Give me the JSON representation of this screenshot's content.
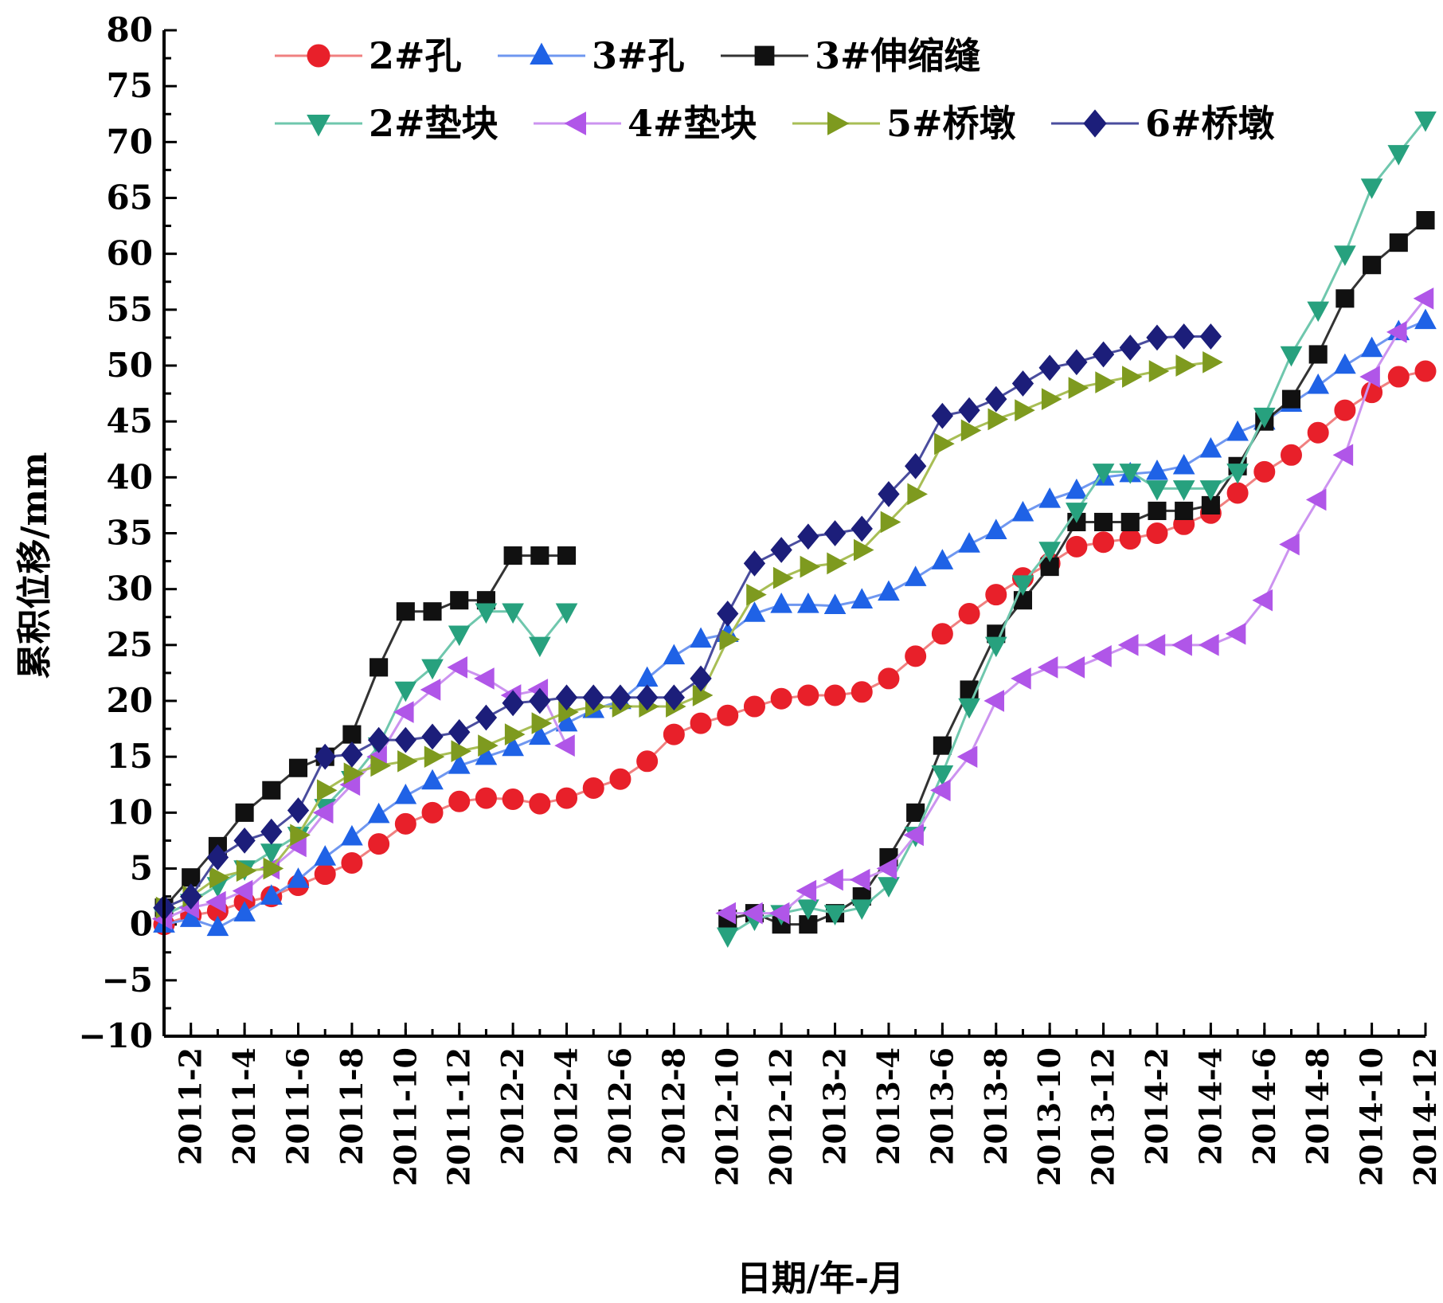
{
  "chart_data": {
    "type": "line",
    "xlabel": "日期/年-月",
    "ylabel": "累积位移/mm",
    "ylim": [
      -10,
      80
    ],
    "y_ticks": [
      -10,
      -5,
      0,
      5,
      10,
      15,
      20,
      25,
      30,
      35,
      40,
      45,
      50,
      55,
      60,
      65,
      70,
      75,
      80
    ],
    "xlim": [
      0,
      47
    ],
    "x_ticks": [
      {
        "x": 1,
        "label": "2011-2"
      },
      {
        "x": 3,
        "label": "2011-4"
      },
      {
        "x": 5,
        "label": "2011-6"
      },
      {
        "x": 7,
        "label": "2011-8"
      },
      {
        "x": 9,
        "label": "2011-10"
      },
      {
        "x": 11,
        "label": "2011-12"
      },
      {
        "x": 13,
        "label": "2012-2"
      },
      {
        "x": 15,
        "label": "2012-4"
      },
      {
        "x": 17,
        "label": "2012-6"
      },
      {
        "x": 19,
        "label": "2012-8"
      },
      {
        "x": 21,
        "label": "2012-10"
      },
      {
        "x": 23,
        "label": "2012-12"
      },
      {
        "x": 25,
        "label": "2013-2"
      },
      {
        "x": 27,
        "label": "2013-4"
      },
      {
        "x": 29,
        "label": "2013-6"
      },
      {
        "x": 31,
        "label": "2013-8"
      },
      {
        "x": 33,
        "label": "2013-10"
      },
      {
        "x": 35,
        "label": "2013-12"
      },
      {
        "x": 37,
        "label": "2014-2"
      },
      {
        "x": 39,
        "label": "2014-4"
      },
      {
        "x": 41,
        "label": "2014-6"
      },
      {
        "x": 43,
        "label": "2014-8"
      },
      {
        "x": 45,
        "label": "2014-10"
      },
      {
        "x": 47,
        "label": "2014-12"
      }
    ],
    "legend_position": "top",
    "series": [
      {
        "name": "2#孔",
        "color": "#e8202a",
        "line_color": "#f08080",
        "marker": "circle",
        "x": [
          0,
          1,
          2,
          3,
          4,
          5,
          6,
          7,
          8,
          9,
          10,
          11,
          12,
          13,
          14,
          15,
          16,
          17,
          18,
          19,
          20,
          21,
          22,
          23,
          24,
          25,
          26,
          27,
          28,
          29,
          30,
          31,
          32,
          33,
          34,
          35,
          36,
          37,
          38,
          39,
          40,
          41,
          42,
          43,
          44,
          45,
          46,
          47
        ],
        "y": [
          0,
          0.8,
          1.2,
          2,
          2.5,
          3.5,
          4.5,
          5.5,
          7.2,
          9,
          10,
          11,
          11.3,
          11.2,
          10.8,
          11.3,
          12.2,
          13,
          14.6,
          17,
          18,
          18.7,
          19.5,
          20.2,
          20.5,
          20.5,
          20.8,
          22,
          24,
          26,
          27.8,
          29.5,
          31,
          32.3,
          33.8,
          34.2,
          34.5,
          35,
          35.8,
          36.8,
          38.6,
          40.5,
          42,
          44,
          46,
          47.6,
          49,
          49.5
        ]
      },
      {
        "name": "3#孔",
        "color": "#1f62e6",
        "line_color": "#6f97f0",
        "marker": "triangle-up",
        "x": [
          0,
          1,
          2,
          3,
          4,
          5,
          6,
          7,
          8,
          9,
          10,
          11,
          12,
          13,
          14,
          15,
          16,
          17,
          18,
          19,
          20,
          21,
          22,
          23,
          24,
          25,
          26,
          27,
          28,
          29,
          30,
          31,
          32,
          33,
          34,
          35,
          36,
          37,
          38,
          39,
          40,
          41,
          42,
          43,
          44,
          45,
          46,
          47
        ],
        "y": [
          0,
          0.5,
          -0.3,
          1,
          2.5,
          4,
          6,
          7.8,
          9.8,
          11.5,
          12.8,
          14.2,
          15,
          15.8,
          16.8,
          18,
          19.2,
          20,
          22,
          24,
          25.5,
          26,
          27.8,
          28.6,
          28.6,
          28.5,
          29,
          29.7,
          31,
          32.5,
          34,
          35.2,
          36.8,
          38,
          38.8,
          40,
          40.3,
          40.5,
          41,
          42.5,
          44,
          45,
          46.6,
          48.2,
          50,
          51.5,
          53,
          54
        ]
      },
      {
        "name": "3#伸缩缝",
        "color": "#111111",
        "line_color": "#333333",
        "marker": "square",
        "segments": [
          {
            "x": [
              0,
              1,
              2,
              3,
              4,
              5,
              6,
              7,
              8,
              9,
              10,
              11,
              12,
              13,
              14,
              15
            ],
            "y": [
              1.5,
              4.2,
              7,
              10,
              12,
              14,
              15,
              17,
              23,
              28,
              28,
              29,
              29,
              33,
              33,
              33
            ]
          },
          {
            "x": [
              21,
              22,
              23,
              24,
              25,
              26,
              27,
              28,
              29,
              30,
              31,
              32,
              33,
              34,
              35,
              36,
              37,
              38,
              39,
              40,
              41,
              42,
              43,
              44,
              45,
              46,
              47
            ],
            "y": [
              0.5,
              1,
              0,
              0,
              1,
              2.5,
              6,
              10,
              16,
              21,
              26,
              29,
              32,
              36,
              36,
              36,
              37,
              37,
              37.5,
              41,
              45,
              47,
              51,
              56,
              59,
              61,
              63
            ]
          }
        ]
      },
      {
        "name": "2#垫块",
        "color": "#27a17e",
        "line_color": "#6fc7ad",
        "marker": "triangle-down",
        "segments": [
          {
            "x": [
              0,
              1,
              2,
              3,
              4,
              5,
              6,
              7,
              8,
              9,
              10,
              11,
              12,
              13,
              14,
              15
            ],
            "y": [
              0.8,
              2,
              3.5,
              5,
              6.5,
              8,
              10.5,
              13,
              16,
              21,
              23,
              26,
              28,
              28,
              25,
              28
            ]
          },
          {
            "x": [
              21,
              22,
              23,
              24,
              25,
              26,
              27,
              28,
              29,
              30,
              31,
              32,
              33,
              34,
              35,
              36,
              37,
              38,
              39,
              40,
              41,
              42,
              43,
              44,
              45,
              46,
              47
            ],
            "y": [
              -1,
              0.5,
              1,
              1.5,
              1,
              1.5,
              3.5,
              8,
              13.5,
              19.5,
              25,
              30.5,
              33.5,
              37,
              40.5,
              40.5,
              39,
              39,
              39,
              40.5,
              45.5,
              51,
              55,
              60,
              66,
              69,
              72
            ]
          }
        ]
      },
      {
        "name": "4#垫块",
        "color": "#b056e8",
        "line_color": "#cc93f0",
        "marker": "triangle-left",
        "segments": [
          {
            "x": [
              0,
              1,
              2,
              3,
              4,
              5,
              6,
              7,
              8,
              9,
              10,
              11,
              12,
              13,
              14,
              15
            ],
            "y": [
              0.5,
              1.5,
              2,
              3,
              5,
              7,
              10,
              12.5,
              15,
              19,
              21,
              23,
              22,
              20.5,
              21,
              16
            ]
          },
          {
            "x": [
              21,
              22,
              23,
              24,
              25,
              26,
              27,
              28,
              29,
              30,
              31,
              32,
              33,
              34,
              35,
              36,
              37,
              38,
              39,
              40,
              41,
              42,
              43,
              44,
              45,
              46,
              47
            ],
            "y": [
              1,
              1,
              1,
              3,
              4,
              4,
              5,
              8,
              12,
              15,
              20,
              22,
              23,
              23,
              24,
              25,
              25,
              25,
              25,
              26,
              29,
              34,
              38,
              42,
              49,
              53,
              56
            ]
          }
        ]
      },
      {
        "name": "5#桥墩",
        "color": "#7e9a1f",
        "line_color": "#a8be55",
        "marker": "triangle-right",
        "segments": [
          {
            "x": [
              0,
              1,
              2,
              3,
              4,
              5,
              6,
              7,
              8,
              9,
              10,
              11,
              12,
              13,
              14,
              15,
              16,
              17,
              18,
              19,
              20,
              21,
              22,
              23,
              24,
              25,
              26,
              27,
              28,
              29,
              30,
              31,
              32,
              33,
              34,
              35,
              36,
              37,
              38,
              39
            ],
            "y": [
              1.5,
              2.5,
              4.2,
              4.8,
              5,
              8,
              12,
              13.5,
              14.2,
              14.6,
              15,
              15.5,
              16,
              17,
              18,
              19,
              19.5,
              19.5,
              19.5,
              19.5,
              20.5,
              25.5,
              29.5,
              31,
              32,
              32.3,
              33.5,
              36,
              38.5,
              43,
              44.2,
              45.2,
              46,
              47,
              48,
              48.5,
              49,
              49.5,
              50,
              50.3
            ]
          }
        ]
      },
      {
        "name": "6#桥墩",
        "color": "#1c1e7a",
        "line_color": "#4a4d9e",
        "marker": "diamond",
        "segments": [
          {
            "x": [
              0,
              1,
              2,
              3,
              4,
              5,
              6,
              7,
              8,
              9,
              10,
              11,
              12,
              13,
              14,
              15,
              16,
              17,
              18,
              19,
              20,
              21,
              22,
              23,
              24,
              25,
              26,
              27,
              28,
              29,
              30,
              31,
              32,
              33,
              34,
              35,
              36,
              37,
              38,
              39
            ],
            "y": [
              1.5,
              2.5,
              6,
              7.5,
              8.3,
              10.2,
              15,
              15.2,
              16.5,
              16.5,
              16.8,
              17.2,
              18.5,
              19.8,
              20,
              20.3,
              20.3,
              20.3,
              20.3,
              20.3,
              22,
              27.8,
              32.3,
              33.5,
              34.7,
              35,
              35.4,
              38.5,
              41,
              45.5,
              46,
              47,
              48.4,
              49.8,
              50.3,
              51,
              51.6,
              52.5,
              52.6,
              52.6
            ]
          }
        ]
      }
    ]
  }
}
